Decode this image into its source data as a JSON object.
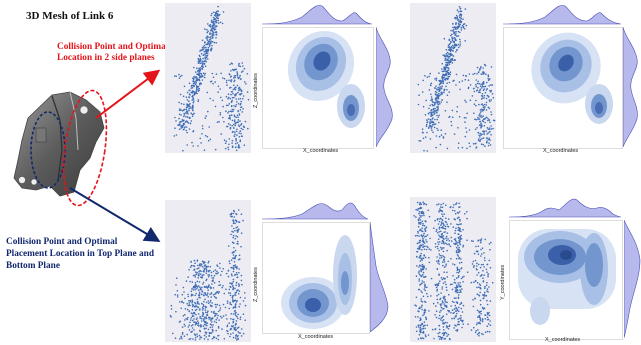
{
  "title": "3D Mesh of Link 6",
  "labels": {
    "side": "Collision Point and Optimal Location in 2 side planes",
    "top_bottom": "Collision Point and Optimal Placement Location in Top Plane and Bottom Plane"
  },
  "axis_labels": {
    "x": "X_coordinates",
    "z": "Z_coordinates",
    "y": "Y_coordinates"
  },
  "colors": {
    "title": "#111111",
    "red_label": "#e5131a",
    "blue_label": "#12286e",
    "scatter": "#3f6db5",
    "kde": "#3b5fa8",
    "marginal": "#7b7fdc",
    "panel_bg": "#ececf2"
  },
  "icons": {
    "part": "link-6-mesh-icon"
  }
}
